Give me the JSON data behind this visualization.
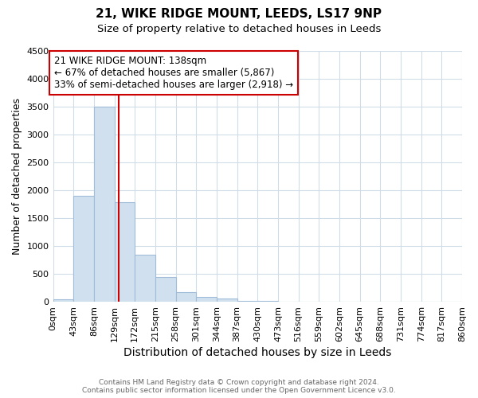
{
  "title": "21, WIKE RIDGE MOUNT, LEEDS, LS17 9NP",
  "subtitle": "Size of property relative to detached houses in Leeds",
  "xlabel": "Distribution of detached houses by size in Leeds",
  "ylabel": "Number of detached properties",
  "bar_heights": [
    50,
    1900,
    3500,
    1780,
    850,
    450,
    170,
    90,
    60,
    15,
    10,
    0,
    0,
    0,
    0,
    0,
    0,
    0,
    0,
    0
  ],
  "bin_edges": [
    0,
    43,
    86,
    129,
    172,
    215,
    258,
    301,
    344,
    387,
    430,
    473,
    516,
    559,
    602,
    645,
    688,
    731,
    774,
    817,
    860
  ],
  "x_tick_labels": [
    "0sqm",
    "43sqm",
    "86sqm",
    "129sqm",
    "172sqm",
    "215sqm",
    "258sqm",
    "301sqm",
    "344sqm",
    "387sqm",
    "430sqm",
    "473sqm",
    "516sqm",
    "559sqm",
    "602sqm",
    "645sqm",
    "688sqm",
    "731sqm",
    "774sqm",
    "817sqm",
    "860sqm"
  ],
  "bar_color": "#d0e0ef",
  "bar_edgecolor": "#a0bcd8",
  "ylim": [
    0,
    4500
  ],
  "yticks": [
    0,
    500,
    1000,
    1500,
    2000,
    2500,
    3000,
    3500,
    4000,
    4500
  ],
  "property_size": 138,
  "red_line_color": "#cc0000",
  "annotation_line1": "21 WIKE RIDGE MOUNT: 138sqm",
  "annotation_line2": "← 67% of detached houses are smaller (5,867)",
  "annotation_line3": "33% of semi-detached houses are larger (2,918) →",
  "annotation_box_edgecolor": "#cc0000",
  "footer_line1": "Contains HM Land Registry data © Crown copyright and database right 2024.",
  "footer_line2": "Contains public sector information licensed under the Open Government Licence v3.0.",
  "bg_color": "#ffffff",
  "plot_bg_color": "#ffffff",
  "grid_color": "#d0dce8",
  "title_fontsize": 11,
  "subtitle_fontsize": 9.5,
  "xlabel_fontsize": 10,
  "ylabel_fontsize": 9,
  "tick_fontsize": 8,
  "footer_fontsize": 6.5,
  "annot_fontsize": 8.5
}
